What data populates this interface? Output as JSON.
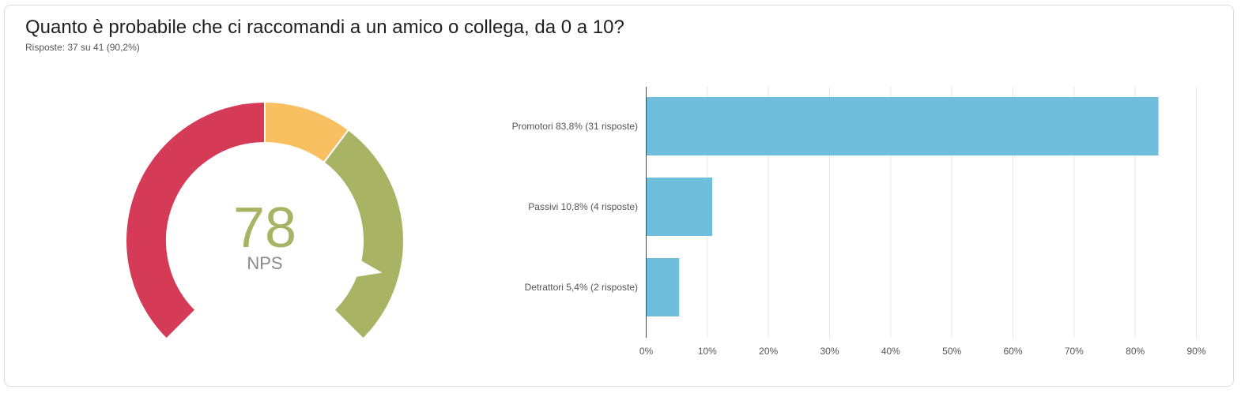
{
  "header": {
    "title": "Quanto è probabile che ci raccomandi a un amico o collega, da 0 a 10?",
    "subtitle": "Risposte: 37 su 41 (90,2%)"
  },
  "gauge": {
    "score": "78",
    "label": "NPS",
    "score_value": 78,
    "segments": [
      {
        "name": "Detrattori",
        "color": "#d53a56"
      },
      {
        "name": "Passivi",
        "color": "#f9c061"
      },
      {
        "name": "Promotori",
        "color": "#a8b464"
      }
    ],
    "score_color": "#a8b464"
  },
  "chart_data": {
    "type": "bar",
    "orientation": "horizontal",
    "categories": [
      "Promotori 83,8% (31 risposte)",
      "Passivi 10,8% (4 risposte)",
      "Detrattori 5,4% (2 risposte)"
    ],
    "values": [
      83.8,
      10.8,
      5.4
    ],
    "xlim": [
      0,
      90
    ],
    "xticks": [
      "0%",
      "10%",
      "20%",
      "30%",
      "40%",
      "50%",
      "60%",
      "70%",
      "80%",
      "90%"
    ],
    "grid": true,
    "bar_color": "#6fbedc"
  }
}
